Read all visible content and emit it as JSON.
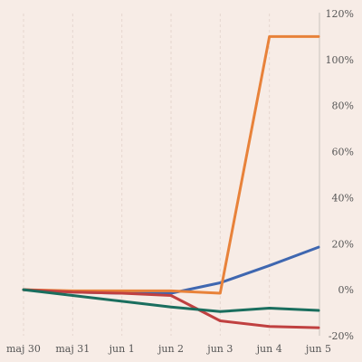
{
  "chart_data": {
    "type": "line",
    "x": [
      "maj 30",
      "maj 31",
      "jun 1",
      "jun 2",
      "jun 3",
      "jun 4",
      "jun 5"
    ],
    "y_ticks": [
      120,
      100,
      80,
      60,
      40,
      20,
      0,
      -20
    ],
    "y_tick_labels": [
      "120%",
      "100%",
      "80%",
      "60%",
      "40%",
      "20%",
      "0%",
      "-20%"
    ],
    "ylim": [
      -20,
      120
    ],
    "y_axis_side": "right",
    "grid": "vertical-dashed",
    "legend": "none",
    "series": [
      {
        "color": "#3f67b0",
        "values": [
          0,
          -1,
          -1.5,
          -1.5,
          3,
          10.5,
          18.5
        ]
      },
      {
        "color": "#e8823a",
        "values": [
          0,
          -0.5,
          -0.5,
          -0.5,
          -1.5,
          110,
          110
        ]
      },
      {
        "color": "#c04040",
        "values": [
          0,
          -1,
          -1.5,
          -2.5,
          -13.5,
          -16,
          -16.5
        ]
      },
      {
        "color": "#1a6e5e",
        "values": [
          0,
          -2.5,
          -5,
          -7.5,
          -9.5,
          -8,
          -9
        ]
      }
    ]
  }
}
